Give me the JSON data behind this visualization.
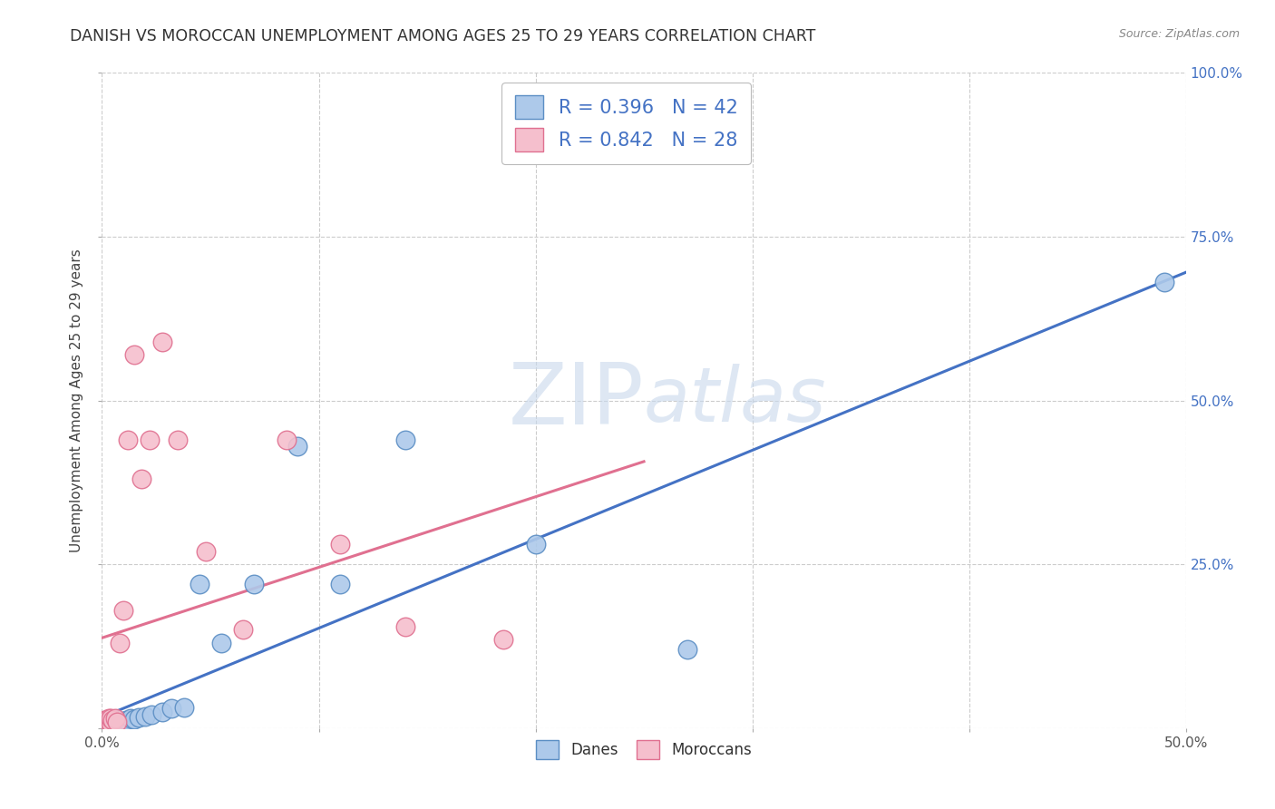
{
  "title": "DANISH VS MOROCCAN UNEMPLOYMENT AMONG AGES 25 TO 29 YEARS CORRELATION CHART",
  "source": "Source: ZipAtlas.com",
  "ylabel": "Unemployment Among Ages 25 to 29 years",
  "xlim": [
    0.0,
    0.5
  ],
  "ylim": [
    0.0,
    1.0
  ],
  "danes_R": 0.396,
  "danes_N": 42,
  "moroccans_R": 0.842,
  "moroccans_N": 28,
  "danes_color": "#adc9ea",
  "danes_edge_color": "#5b8ec4",
  "moroccans_color": "#f5bfcd",
  "moroccans_edge_color": "#e07090",
  "danes_line_color": "#4472c4",
  "moroccans_line_color": "#e07090",
  "watermark_zip": "ZIP",
  "watermark_atlas": "atlas",
  "background_color": "#ffffff",
  "grid_color": "#cccccc",
  "title_fontsize": 12.5,
  "axis_label_fontsize": 11,
  "tick_fontsize": 11,
  "legend_fontsize": 15,
  "danes_x": [
    0.001,
    0.001,
    0.001,
    0.002,
    0.002,
    0.002,
    0.002,
    0.003,
    0.003,
    0.003,
    0.003,
    0.004,
    0.004,
    0.004,
    0.005,
    0.005,
    0.005,
    0.006,
    0.006,
    0.007,
    0.007,
    0.008,
    0.009,
    0.01,
    0.011,
    0.013,
    0.015,
    0.017,
    0.02,
    0.023,
    0.028,
    0.032,
    0.038,
    0.045,
    0.055,
    0.07,
    0.09,
    0.11,
    0.14,
    0.2,
    0.27,
    0.49
  ],
  "danes_y": [
    0.005,
    0.006,
    0.008,
    0.005,
    0.006,
    0.007,
    0.01,
    0.005,
    0.007,
    0.008,
    0.01,
    0.006,
    0.008,
    0.01,
    0.005,
    0.007,
    0.01,
    0.006,
    0.01,
    0.007,
    0.01,
    0.008,
    0.01,
    0.01,
    0.012,
    0.015,
    0.013,
    0.016,
    0.018,
    0.02,
    0.025,
    0.03,
    0.032,
    0.22,
    0.13,
    0.22,
    0.43,
    0.22,
    0.44,
    0.28,
    0.12,
    0.68
  ],
  "moroccans_x": [
    0.001,
    0.001,
    0.001,
    0.002,
    0.002,
    0.002,
    0.003,
    0.003,
    0.003,
    0.004,
    0.004,
    0.005,
    0.006,
    0.007,
    0.008,
    0.01,
    0.012,
    0.015,
    0.018,
    0.022,
    0.028,
    0.035,
    0.048,
    0.065,
    0.085,
    0.11,
    0.14,
    0.185
  ],
  "moroccans_y": [
    0.005,
    0.008,
    0.012,
    0.006,
    0.009,
    0.012,
    0.007,
    0.01,
    0.015,
    0.008,
    0.015,
    0.012,
    0.015,
    0.01,
    0.13,
    0.18,
    0.44,
    0.57,
    0.38,
    0.44,
    0.59,
    0.44,
    0.27,
    0.15,
    0.44,
    0.28,
    0.155,
    0.135
  ]
}
